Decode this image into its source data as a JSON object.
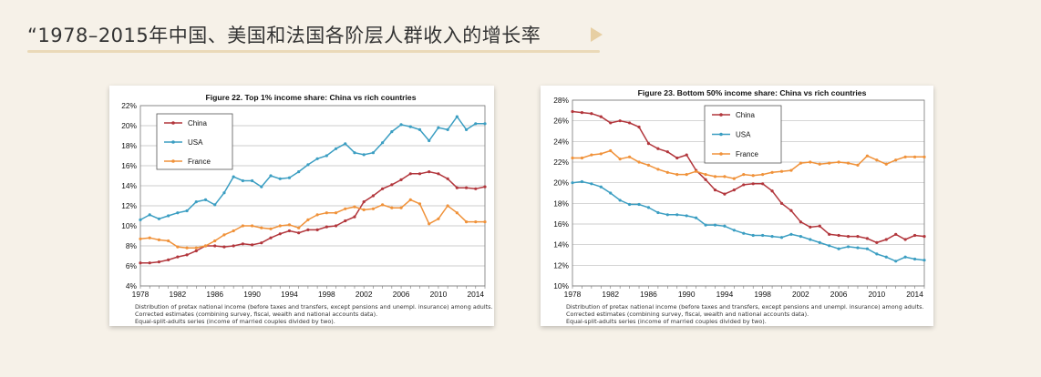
{
  "header": {
    "title": "“1978–2015年中国、美国和法国各阶层人群收入的增长率"
  },
  "colors": {
    "china": "#b2363c",
    "usa": "#3b9ec2",
    "france": "#f0923a",
    "background": "#f6f1e8"
  },
  "chart_data": [
    {
      "type": "line",
      "title": "Figure 22. Top 1% income share: China vs rich countries",
      "x": [
        1978,
        1979,
        1980,
        1981,
        1982,
        1983,
        1984,
        1985,
        1986,
        1987,
        1988,
        1989,
        1990,
        1991,
        1992,
        1993,
        1994,
        1995,
        1996,
        1997,
        1998,
        1999,
        2000,
        2001,
        2002,
        2003,
        2004,
        2005,
        2006,
        2007,
        2008,
        2009,
        2010,
        2011,
        2012,
        2013,
        2014,
        2015
      ],
      "xticks": [
        "1978",
        "1982",
        "1986",
        "1990",
        "1994",
        "1998",
        "2002",
        "2006",
        "2010",
        "2014"
      ],
      "yticks": [
        "4%",
        "6%",
        "8%",
        "10%",
        "12%",
        "14%",
        "16%",
        "18%",
        "20%",
        "22%"
      ],
      "ylim": [
        4,
        22
      ],
      "legend_position": "top-left",
      "series": [
        {
          "name": "China",
          "values": [
            6.3,
            6.3,
            6.4,
            6.6,
            6.9,
            7.1,
            7.5,
            8.0,
            8.0,
            7.9,
            8.0,
            8.2,
            8.1,
            8.3,
            8.8,
            9.2,
            9.5,
            9.3,
            9.6,
            9.6,
            9.9,
            10.0,
            10.5,
            10.9,
            12.4,
            13.0,
            13.7,
            14.1,
            14.6,
            15.2,
            15.2,
            15.4,
            15.2,
            14.7,
            13.8,
            13.8,
            13.7,
            13.9
          ]
        },
        {
          "name": "USA",
          "values": [
            10.6,
            11.1,
            10.7,
            11.0,
            11.3,
            11.5,
            12.4,
            12.6,
            12.1,
            13.3,
            14.9,
            14.5,
            14.5,
            13.9,
            15.0,
            14.7,
            14.8,
            15.4,
            16.1,
            16.7,
            17.0,
            17.7,
            18.2,
            17.3,
            17.1,
            17.3,
            18.3,
            19.4,
            20.1,
            19.9,
            19.6,
            18.5,
            19.8,
            19.6,
            20.9,
            19.6,
            20.2,
            20.2
          ]
        },
        {
          "name": "France",
          "values": [
            8.7,
            8.8,
            8.6,
            8.5,
            7.9,
            7.8,
            7.8,
            8.0,
            8.5,
            9.1,
            9.5,
            10.0,
            10.0,
            9.8,
            9.7,
            10.0,
            10.1,
            9.8,
            10.6,
            11.1,
            11.3,
            11.3,
            11.7,
            11.9,
            11.6,
            11.7,
            12.1,
            11.8,
            11.8,
            12.6,
            12.2,
            10.2,
            10.7,
            12.0,
            11.3,
            10.4,
            10.4,
            10.4
          ]
        }
      ],
      "notes": [
        "Distribution of pretax national income (before taxes and transfers, except pensions and unempl. insurance) among adults.",
        "Corrected estimates (combining survey, fiscal, wealth and national accounts data).",
        "Equal-split-adults series (income of married couples divided by two)."
      ]
    },
    {
      "type": "line",
      "title": "Figure 23. Bottom 50% income share: China vs rich countries",
      "x": [
        1978,
        1979,
        1980,
        1981,
        1982,
        1983,
        1984,
        1985,
        1986,
        1987,
        1988,
        1989,
        1990,
        1991,
        1992,
        1993,
        1994,
        1995,
        1996,
        1997,
        1998,
        1999,
        2000,
        2001,
        2002,
        2003,
        2004,
        2005,
        2006,
        2007,
        2008,
        2009,
        2010,
        2011,
        2012,
        2013,
        2014,
        2015
      ],
      "xticks": [
        "1978",
        "1982",
        "1986",
        "1990",
        "1994",
        "1998",
        "2002",
        "2006",
        "2010",
        "2014"
      ],
      "yticks": [
        "10%",
        "12%",
        "14%",
        "16%",
        "18%",
        "20%",
        "22%",
        "24%",
        "26%",
        "28%"
      ],
      "ylim": [
        10,
        28
      ],
      "legend_position": "top-center",
      "series": [
        {
          "name": "China",
          "values": [
            26.9,
            26.8,
            26.7,
            26.4,
            25.8,
            26.0,
            25.8,
            25.4,
            23.8,
            23.3,
            23.0,
            22.4,
            22.7,
            21.2,
            20.3,
            19.3,
            18.9,
            19.3,
            19.8,
            19.9,
            19.9,
            19.2,
            18.0,
            17.3,
            16.2,
            15.7,
            15.8,
            15.0,
            14.9,
            14.8,
            14.8,
            14.6,
            14.2,
            14.5,
            15.0,
            14.5,
            14.9,
            14.8
          ]
        },
        {
          "name": "USA",
          "values": [
            20.0,
            20.1,
            19.9,
            19.6,
            19.0,
            18.3,
            17.9,
            17.9,
            17.6,
            17.1,
            16.9,
            16.9,
            16.8,
            16.6,
            15.9,
            15.9,
            15.8,
            15.4,
            15.1,
            14.9,
            14.9,
            14.8,
            14.7,
            15.0,
            14.8,
            14.5,
            14.2,
            13.9,
            13.6,
            13.8,
            13.7,
            13.6,
            13.1,
            12.8,
            12.4,
            12.8,
            12.6,
            12.5
          ]
        },
        {
          "name": "France",
          "values": [
            22.4,
            22.4,
            22.7,
            22.8,
            23.1,
            22.3,
            22.5,
            22.0,
            21.7,
            21.3,
            21.0,
            20.8,
            20.8,
            21.1,
            20.8,
            20.6,
            20.6,
            20.4,
            20.8,
            20.7,
            20.8,
            21.0,
            21.1,
            21.2,
            21.9,
            22.0,
            21.8,
            21.9,
            22.0,
            21.9,
            21.7,
            22.6,
            22.2,
            21.8,
            22.2,
            22.5,
            22.5,
            22.5
          ]
        }
      ],
      "notes": [
        "Distribution of pretax national income (before taxes and transfers, except pensions and unempl. insurance) among adults.",
        "Corrected estimates (combining survey, fiscal, wealth and national accounts data).",
        "Equal-split-adults series (income of married couples divided by two)."
      ]
    }
  ]
}
